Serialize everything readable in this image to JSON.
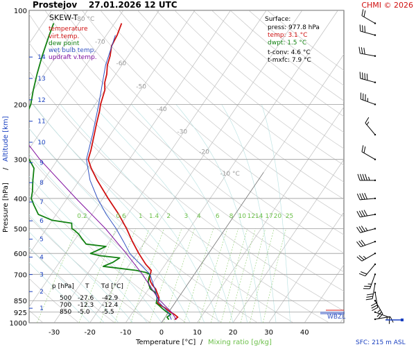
{
  "header": {
    "title": "Prostejov    27.01.2026 12 UTC",
    "credit": "CHMI © 2026"
  },
  "chart_data": {
    "type": "line",
    "title": "SKEW-T",
    "xlabel_temp": "Temperature [°C]",
    "xlabel_sep": "/",
    "xlabel_mix": "Mixing ratio [g/kg]",
    "ylabel_pressure": "Pressure [hPa]",
    "ylabel_sep": "/",
    "ylabel_altitude": "Altitude [km]",
    "legend": [
      {
        "name": "temperature",
        "color": "#d01010"
      },
      {
        "name": "virt.temp.",
        "color": "#d01010"
      },
      {
        "name": "dew point",
        "color": "#108010"
      },
      {
        "name": "wet bulb temp.",
        "color": "#3050c0"
      },
      {
        "name": "updraft v.temp.",
        "color": "#8010a0"
      }
    ],
    "x_ticks": [
      -30,
      -20,
      -10,
      0,
      10,
      20,
      30,
      40
    ],
    "xlim": [
      -37,
      51
    ],
    "ylim": [
      1000,
      100
    ],
    "p_ticks": [
      100,
      200,
      300,
      400,
      500,
      600,
      700,
      850,
      925,
      1000
    ],
    "alt_ticks": [
      1,
      2,
      3,
      4,
      5,
      6,
      7,
      8,
      9,
      10,
      11,
      12,
      13,
      14
    ],
    "isotherm_labels": [
      {
        "t": -80,
        "label": "-80 °C"
      },
      {
        "t": -70,
        "label": "-70"
      },
      {
        "t": -60,
        "label": "-60"
      },
      {
        "t": -50,
        "label": "-50"
      },
      {
        "t": -40,
        "label": "-40"
      },
      {
        "t": -30,
        "label": "-30"
      },
      {
        "t": -20,
        "label": "-20"
      },
      {
        "t": -10,
        "label": "-10 °C"
      }
    ],
    "mixing_ratio_labels": [
      "0.2",
      "0.6",
      "1",
      "1.4",
      "2",
      "3",
      "4",
      "6",
      "8",
      "10",
      "12",
      "14",
      "17",
      "20",
      "25"
    ],
    "mixing_ratio_values": [
      0.2,
      0.6,
      1,
      1.4,
      2,
      3,
      4,
      6,
      8,
      10,
      12,
      14,
      17,
      20,
      25
    ],
    "surface": {
      "heading": "Surface:",
      "press": "press: 977.8 hPa",
      "temp": "temp: 3.1 °C",
      "dwpt": "dwpt: 1.5 °C",
      "tconv": "t-conv: 4.6 °C",
      "tmxfc": "t-mxfc: 7.9 °C"
    },
    "table": {
      "headers": [
        "p [hPa]",
        "T",
        "Td [°C]"
      ],
      "rows": [
        [
          "500",
          "-27.6",
          "-42.9"
        ],
        [
          "700",
          "-12.3",
          "-12.4"
        ],
        [
          "850",
          "-5.0",
          "-5.5"
        ]
      ]
    },
    "marker_label": "WBZL",
    "sfc_label": "SFC: 215 m ASL",
    "series": [
      {
        "name": "temperature",
        "color": "#d01010",
        "points": [
          [
            977.8,
            3.1
          ],
          [
            960,
            3.5
          ],
          [
            940,
            2.0
          ],
          [
            925,
            0.5
          ],
          [
            900,
            -1.5
          ],
          [
            880,
            -3.5
          ],
          [
            865,
            -4.8
          ],
          [
            850,
            -5.0
          ],
          [
            830,
            -5.5
          ],
          [
            800,
            -7.0
          ],
          [
            780,
            -8.0
          ],
          [
            760,
            -9.5
          ],
          [
            740,
            -10.8
          ],
          [
            720,
            -11.8
          ],
          [
            700,
            -12.3
          ],
          [
            680,
            -12.8
          ],
          [
            650,
            -15.5
          ],
          [
            600,
            -19.5
          ],
          [
            550,
            -23.5
          ],
          [
            500,
            -27.6
          ],
          [
            450,
            -32.5
          ],
          [
            400,
            -38.5
          ],
          [
            350,
            -45.0
          ],
          [
            320,
            -49.0
          ],
          [
            300,
            -51.5
          ],
          [
            280,
            -52.5
          ],
          [
            250,
            -54.5
          ],
          [
            230,
            -56.0
          ],
          [
            210,
            -57.5
          ],
          [
            200,
            -58.5
          ],
          [
            180,
            -60.0
          ],
          [
            170,
            -61.5
          ],
          [
            160,
            -62.5
          ],
          [
            150,
            -64.0
          ],
          [
            140,
            -65.0
          ],
          [
            130,
            -66.5
          ],
          [
            120,
            -67.0
          ],
          [
            110,
            -68.0
          ]
        ]
      },
      {
        "name": "dew point",
        "color": "#108010",
        "points": [
          [
            977.8,
            1.5
          ],
          [
            960,
            0.5
          ],
          [
            940,
            1.0
          ],
          [
            925,
            -0.5
          ],
          [
            900,
            -2.5
          ],
          [
            880,
            -4.0
          ],
          [
            865,
            -5.2
          ],
          [
            850,
            -5.5
          ],
          [
            830,
            -6.0
          ],
          [
            800,
            -7.5
          ],
          [
            780,
            -9.5
          ],
          [
            760,
            -10.5
          ],
          [
            740,
            -11.5
          ],
          [
            720,
            -12.0
          ],
          [
            700,
            -12.4
          ],
          [
            690,
            -14.0
          ],
          [
            680,
            -17.0
          ],
          [
            670,
            -22.0
          ],
          [
            660,
            -27.0
          ],
          [
            640,
            -25.0
          ],
          [
            620,
            -24.0
          ],
          [
            610,
            -30.0
          ],
          [
            600,
            -33.0
          ],
          [
            590,
            -32.0
          ],
          [
            580,
            -31.0
          ],
          [
            570,
            -30.0
          ],
          [
            560,
            -36.0
          ],
          [
            540,
            -38.0
          ],
          [
            520,
            -40.0
          ],
          [
            505,
            -42.0
          ],
          [
            500,
            -42.9
          ],
          [
            480,
            -44.0
          ],
          [
            470,
            -50.0
          ],
          [
            450,
            -55.0
          ],
          [
            420,
            -58.0
          ],
          [
            400,
            -60.0
          ],
          [
            380,
            -61.0
          ],
          [
            350,
            -63.0
          ],
          [
            320,
            -65.0
          ],
          [
            300,
            -68.0
          ],
          [
            280,
            -72.0
          ],
          [
            260,
            -74.0
          ],
          [
            240,
            -76.0
          ],
          [
            220,
            -77.0
          ],
          [
            200,
            -78.0
          ],
          [
            180,
            -80.0
          ],
          [
            160,
            -82.0
          ],
          [
            140,
            -84.0
          ],
          [
            120,
            -86.0
          ],
          [
            110,
            -87.0
          ]
        ]
      },
      {
        "name": "wet bulb temp.",
        "color": "#3050c0",
        "points": [
          [
            977.8,
            2.2
          ],
          [
            925,
            -0.1
          ],
          [
            850,
            -5.3
          ],
          [
            800,
            -7.3
          ],
          [
            700,
            -12.4
          ],
          [
            650,
            -17.0
          ],
          [
            600,
            -22.0
          ],
          [
            550,
            -26.0
          ],
          [
            500,
            -30.5
          ],
          [
            450,
            -36.0
          ],
          [
            400,
            -41.5
          ],
          [
            350,
            -47.0
          ],
          [
            300,
            -52.0
          ],
          [
            250,
            -55.0
          ],
          [
            200,
            -59.0
          ],
          [
            150,
            -64.5
          ],
          [
            120,
            -67.5
          ]
        ]
      },
      {
        "name": "updraft v.temp.",
        "color": "#8010a0",
        "points": [
          [
            977.8,
            3.6
          ],
          [
            925,
            0.8
          ],
          [
            850,
            -4.6
          ],
          [
            800,
            -7.8
          ],
          [
            700,
            -14.5
          ],
          [
            600,
            -23.0
          ],
          [
            500,
            -33.5
          ],
          [
            400,
            -47.5
          ],
          [
            300,
            -65.0
          ],
          [
            250,
            -75.0
          ],
          [
            200,
            -87.0
          ],
          [
            170,
            -95.0
          ]
        ]
      }
    ],
    "wind_barbs": [
      {
        "p": 975,
        "dir": 80,
        "speed": 10
      },
      {
        "p": 925,
        "dir": 110,
        "speed": 15
      },
      {
        "p": 850,
        "dir": 150,
        "speed": 25
      },
      {
        "p": 800,
        "dir": 170,
        "speed": 30
      },
      {
        "p": 750,
        "dir": 190,
        "speed": 30
      },
      {
        "p": 700,
        "dir": 200,
        "speed": 25
      },
      {
        "p": 650,
        "dir": 220,
        "speed": 20
      },
      {
        "p": 600,
        "dir": 240,
        "speed": 25
      },
      {
        "p": 550,
        "dir": 250,
        "speed": 30
      },
      {
        "p": 500,
        "dir": 255,
        "speed": 35
      },
      {
        "p": 450,
        "dir": 260,
        "speed": 40
      },
      {
        "p": 400,
        "dir": 265,
        "speed": 40
      },
      {
        "p": 350,
        "dir": 270,
        "speed": 45
      },
      {
        "p": 300,
        "dir": 300,
        "speed": 20
      },
      {
        "p": 250,
        "dir": 320,
        "speed": 15
      },
      {
        "p": 200,
        "dir": 290,
        "speed": 35
      },
      {
        "p": 170,
        "dir": 285,
        "speed": 40
      },
      {
        "p": 140,
        "dir": 280,
        "speed": 30
      },
      {
        "p": 120,
        "dir": 285,
        "speed": 30
      },
      {
        "p": 110,
        "dir": 300,
        "speed": 20
      }
    ]
  }
}
